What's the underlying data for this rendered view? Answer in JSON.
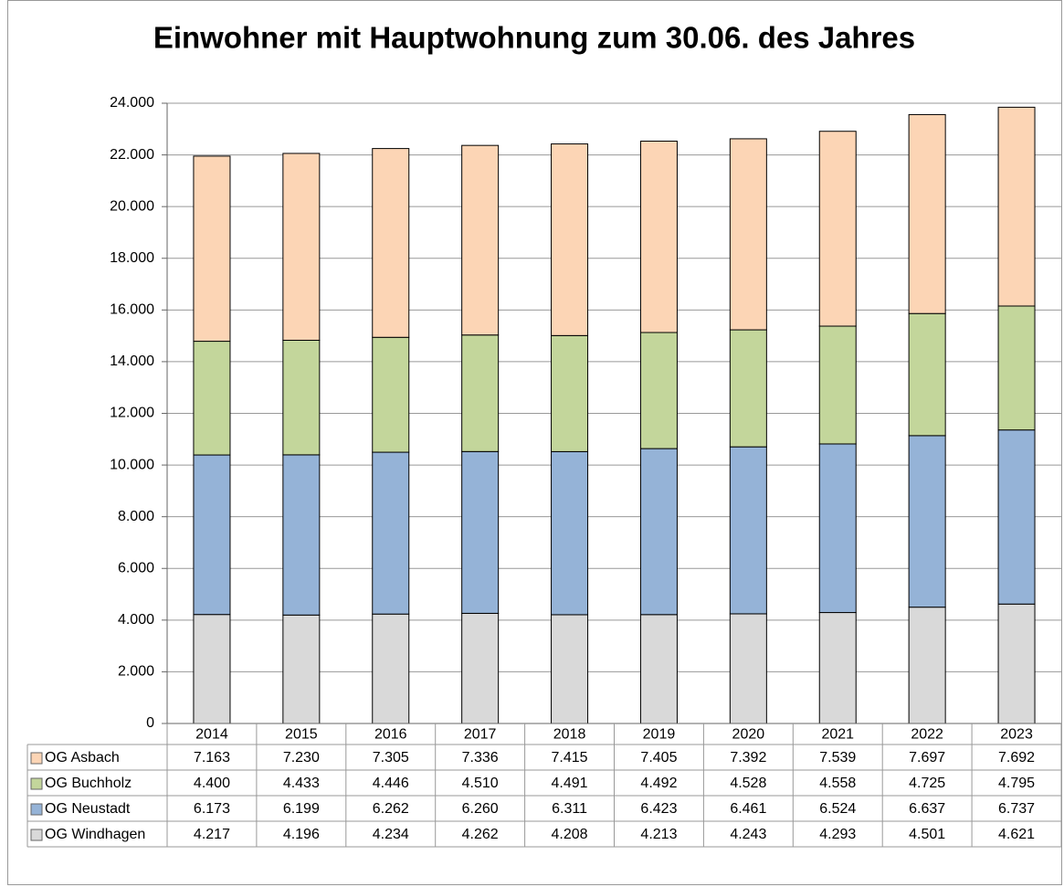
{
  "chart_data": {
    "type": "stacked_bar",
    "title": "Einwohner mit Hauptwohnung zum 30.06. des Jahres",
    "categories": [
      "2014",
      "2015",
      "2016",
      "2017",
      "2018",
      "2019",
      "2020",
      "2021",
      "2022",
      "2023"
    ],
    "series": [
      {
        "name": "OG Asbach",
        "color": "#fcd5b5",
        "values": [
          7163,
          7230,
          7305,
          7336,
          7415,
          7405,
          7392,
          7539,
          7697,
          7692
        ],
        "value_labels": [
          "7.163",
          "7.230",
          "7.305",
          "7.336",
          "7.415",
          "7.405",
          "7.392",
          "7.539",
          "7.697",
          "7.692"
        ]
      },
      {
        "name": "OG Buchholz",
        "color": "#c3d69b",
        "values": [
          4400,
          4433,
          4446,
          4510,
          4491,
          4492,
          4528,
          4558,
          4725,
          4795
        ],
        "value_labels": [
          "4.400",
          "4.433",
          "4.446",
          "4.510",
          "4.491",
          "4.492",
          "4.528",
          "4.558",
          "4.725",
          "4.795"
        ]
      },
      {
        "name": "OG Neustadt",
        "color": "#95b3d7",
        "values": [
          6173,
          6199,
          6262,
          6260,
          6311,
          6423,
          6461,
          6524,
          6637,
          6737
        ],
        "value_labels": [
          "6.173",
          "6.199",
          "6.262",
          "6.260",
          "6.311",
          "6.423",
          "6.461",
          "6.524",
          "6.637",
          "6.737"
        ]
      },
      {
        "name": "OG Windhagen",
        "color": "#d9d9d9",
        "values": [
          4217,
          4196,
          4234,
          4262,
          4208,
          4213,
          4243,
          4293,
          4501,
          4621
        ],
        "value_labels": [
          "4.217",
          "4.196",
          "4.234",
          "4.262",
          "4.208",
          "4.213",
          "4.243",
          "4.293",
          "4.501",
          "4.621"
        ]
      }
    ],
    "ylim": [
      0,
      24000
    ],
    "yticks": [
      0,
      {
        "value": 2000,
        "label": "2.000"
      },
      {
        "value": 4000,
        "label": "4.000"
      },
      {
        "value": 6000,
        "label": "6.000"
      },
      {
        "value": 8000,
        "label": "8.000"
      },
      {
        "value": 10000,
        "label": "10.000"
      },
      {
        "value": 12000,
        "label": "12.000"
      },
      {
        "value": 14000,
        "label": "14.000"
      },
      {
        "value": 16000,
        "label": "16.000"
      },
      {
        "value": 18000,
        "label": "18.000"
      },
      {
        "value": 20000,
        "label": "20.000"
      },
      {
        "value": 22000,
        "label": "22.000"
      },
      {
        "value": 24000,
        "label": "24.000"
      }
    ],
    "grid": true
  }
}
